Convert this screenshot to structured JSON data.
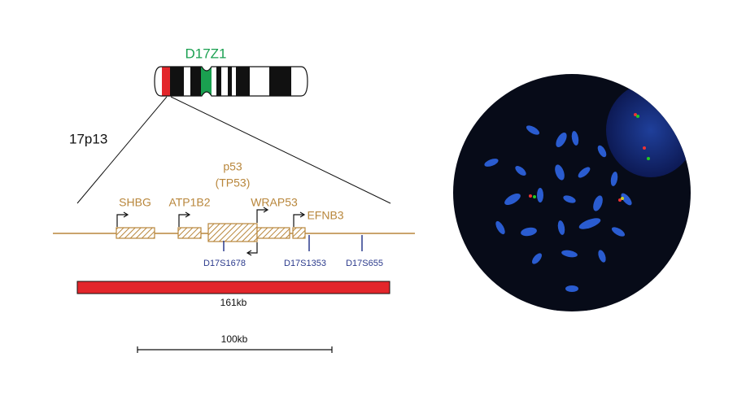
{
  "probe": {
    "centromere_label": "D17Z1",
    "band_label": "17p13",
    "gene_main": "p53",
    "gene_main_alias": "(TP53)",
    "genes": [
      "SHBG",
      "ATP1B2",
      "WRAP53",
      "EFNB3"
    ],
    "markers": [
      "D17S1678",
      "D17S1353",
      "D17S655"
    ],
    "probe_size": "161kb",
    "scale_bar": "100kb"
  }
}
